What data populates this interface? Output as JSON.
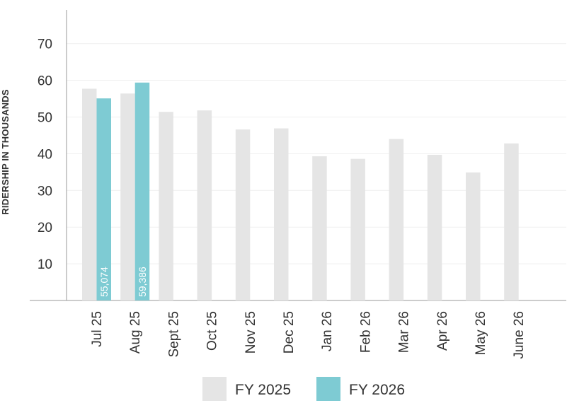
{
  "chart_data": {
    "type": "bar",
    "ylabel": "RIDERSHIP IN THOUSANDS",
    "ylim": [
      0,
      80
    ],
    "yticks": [
      10,
      20,
      30,
      40,
      50,
      60,
      70
    ],
    "grid": true,
    "legend_position": "bottom-center",
    "categories": [
      "Jul 25",
      "Aug 25",
      "Sept 25",
      "Oct 25",
      "Nov 25",
      "Dec 25",
      "Jan 26",
      "Feb 26",
      "Mar 26",
      "Apr 26",
      "May 26",
      "June 26"
    ],
    "series": [
      {
        "name": "FY 2025",
        "color": "#e5e5e5",
        "values": [
          57.7,
          56.4,
          51.4,
          51.8,
          46.6,
          46.9,
          39.3,
          38.6,
          44.0,
          39.7,
          34.9,
          42.8
        ]
      },
      {
        "name": "FY 2026",
        "color": "#7ecbd3",
        "values": [
          55.074,
          59.386,
          null,
          null,
          null,
          null,
          null,
          null,
          null,
          null,
          null,
          null
        ],
        "labels": [
          "55,074",
          "59,386"
        ]
      }
    ]
  }
}
